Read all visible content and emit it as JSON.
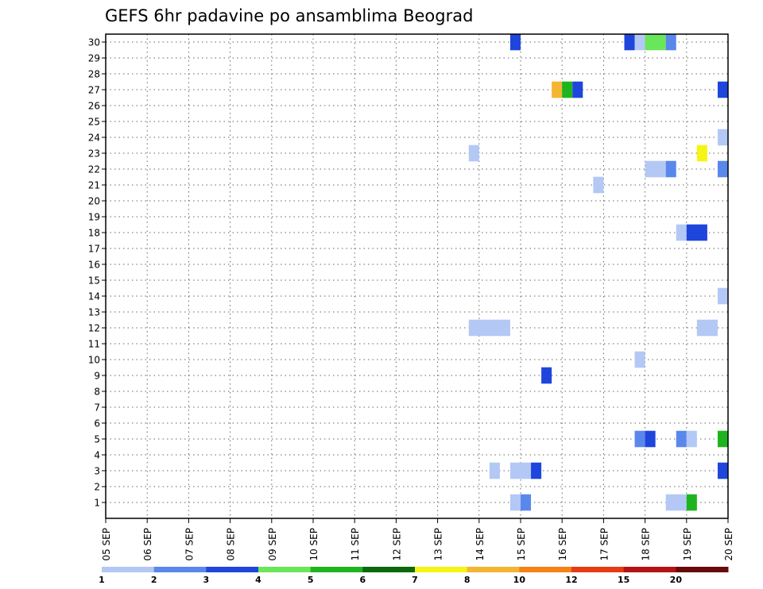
{
  "chart_data": {
    "type": "heatmap",
    "title": "GEFS 6hr padavine po ansamblima Beograd",
    "xlabel": "",
    "ylabel": "",
    "x_tick_labels": [
      "05 SEP",
      "06 SEP",
      "07 SEP",
      "08 SEP",
      "09 SEP",
      "10 SEP",
      "11 SEP",
      "12 SEP",
      "13 SEP",
      "14 SEP",
      "15 SEP",
      "16 SEP",
      "17 SEP",
      "18 SEP",
      "19 SEP",
      "20 SEP"
    ],
    "y_tick_labels": [
      "1",
      "2",
      "3",
      "4",
      "5",
      "6",
      "7",
      "8",
      "9",
      "10",
      "11",
      "12",
      "13",
      "14",
      "15",
      "16",
      "17",
      "18",
      "19",
      "20",
      "21",
      "22",
      "23",
      "24",
      "25",
      "26",
      "27",
      "28",
      "29",
      "30"
    ],
    "x_start": "05 SEP",
    "x_end": "20 SEP",
    "time_step_hours": 6,
    "grid": true,
    "colorbar": {
      "placement": "bottom",
      "labels": [
        "1",
        "2",
        "3",
        "4",
        "5",
        "6",
        "7",
        "8",
        "10",
        "12",
        "15",
        "20"
      ],
      "colors": [
        "#b4c8f5",
        "#5a87eb",
        "#1e46dc",
        "#69e65a",
        "#1eb41e",
        "#0a690a",
        "#f5f514",
        "#f5b432",
        "#f58214",
        "#e63c14",
        "#b41414",
        "#690a0a"
      ]
    },
    "cells": [
      {
        "member": 1,
        "start": "14 SEP 18Z",
        "end": "15 SEP 00Z",
        "value": 1
      },
      {
        "member": 1,
        "start": "15 SEP 00Z",
        "end": "15 SEP 06Z",
        "value": 2
      },
      {
        "member": 1,
        "start": "18 SEP 12Z",
        "end": "19 SEP 00Z",
        "value": 1
      },
      {
        "member": 1,
        "start": "19 SEP 00Z",
        "end": "19 SEP 06Z",
        "value": 5
      },
      {
        "member": 3,
        "start": "14 SEP 06Z",
        "end": "14 SEP 12Z",
        "value": 1
      },
      {
        "member": 3,
        "start": "14 SEP 18Z",
        "end": "15 SEP 06Z",
        "value": 1
      },
      {
        "member": 3,
        "start": "15 SEP 06Z",
        "end": "15 SEP 12Z",
        "value": 3
      },
      {
        "member": 3,
        "start": "19 SEP 18Z",
        "end": "20 SEP 00Z",
        "value": 3
      },
      {
        "member": 5,
        "start": "17 SEP 18Z",
        "end": "18 SEP 00Z",
        "value": 2
      },
      {
        "member": 5,
        "start": "18 SEP 00Z",
        "end": "18 SEP 06Z",
        "value": 3
      },
      {
        "member": 5,
        "start": "18 SEP 18Z",
        "end": "19 SEP 00Z",
        "value": 2
      },
      {
        "member": 5,
        "start": "19 SEP 00Z",
        "end": "19 SEP 06Z",
        "value": 1
      },
      {
        "member": 5,
        "start": "19 SEP 18Z",
        "end": "20 SEP 00Z",
        "value": 5
      },
      {
        "member": 9,
        "start": "15 SEP 12Z",
        "end": "15 SEP 18Z",
        "value": 3
      },
      {
        "member": 10,
        "start": "17 SEP 18Z",
        "end": "18 SEP 00Z",
        "value": 1
      },
      {
        "member": 12,
        "start": "13 SEP 18Z",
        "end": "14 SEP 18Z",
        "value": 1
      },
      {
        "member": 12,
        "start": "19 SEP 06Z",
        "end": "19 SEP 18Z",
        "value": 1
      },
      {
        "member": 14,
        "start": "19 SEP 18Z",
        "end": "20 SEP 00Z",
        "value": 1
      },
      {
        "member": 18,
        "start": "18 SEP 18Z",
        "end": "19 SEP 00Z",
        "value": 1
      },
      {
        "member": 18,
        "start": "19 SEP 00Z",
        "end": "19 SEP 12Z",
        "value": 3
      },
      {
        "member": 21,
        "start": "16 SEP 18Z",
        "end": "17 SEP 00Z",
        "value": 1
      },
      {
        "member": 22,
        "start": "18 SEP 00Z",
        "end": "18 SEP 12Z",
        "value": 1
      },
      {
        "member": 22,
        "start": "18 SEP 12Z",
        "end": "18 SEP 18Z",
        "value": 2
      },
      {
        "member": 22,
        "start": "19 SEP 18Z",
        "end": "20 SEP 00Z",
        "value": 2
      },
      {
        "member": 23,
        "start": "13 SEP 18Z",
        "end": "14 SEP 00Z",
        "value": 1
      },
      {
        "member": 23,
        "start": "19 SEP 06Z",
        "end": "19 SEP 12Z",
        "value": 7
      },
      {
        "member": 24,
        "start": "19 SEP 18Z",
        "end": "20 SEP 00Z",
        "value": 1
      },
      {
        "member": 27,
        "start": "15 SEP 18Z",
        "end": "16 SEP 00Z",
        "value": 8
      },
      {
        "member": 27,
        "start": "16 SEP 00Z",
        "end": "16 SEP 06Z",
        "value": 5
      },
      {
        "member": 27,
        "start": "16 SEP 06Z",
        "end": "16 SEP 12Z",
        "value": 3
      },
      {
        "member": 27,
        "start": "19 SEP 18Z",
        "end": "20 SEP 00Z",
        "value": 3
      },
      {
        "member": 30,
        "start": "14 SEP 18Z",
        "end": "15 SEP 00Z",
        "value": 3
      },
      {
        "member": 30,
        "start": "17 SEP 12Z",
        "end": "17 SEP 18Z",
        "value": 3
      },
      {
        "member": 30,
        "start": "17 SEP 18Z",
        "end": "18 SEP 00Z",
        "value": 1
      },
      {
        "member": 30,
        "start": "18 SEP 00Z",
        "end": "18 SEP 12Z",
        "value": 4
      },
      {
        "member": 30,
        "start": "18 SEP 12Z",
        "end": "18 SEP 18Z",
        "value": 2
      }
    ]
  }
}
